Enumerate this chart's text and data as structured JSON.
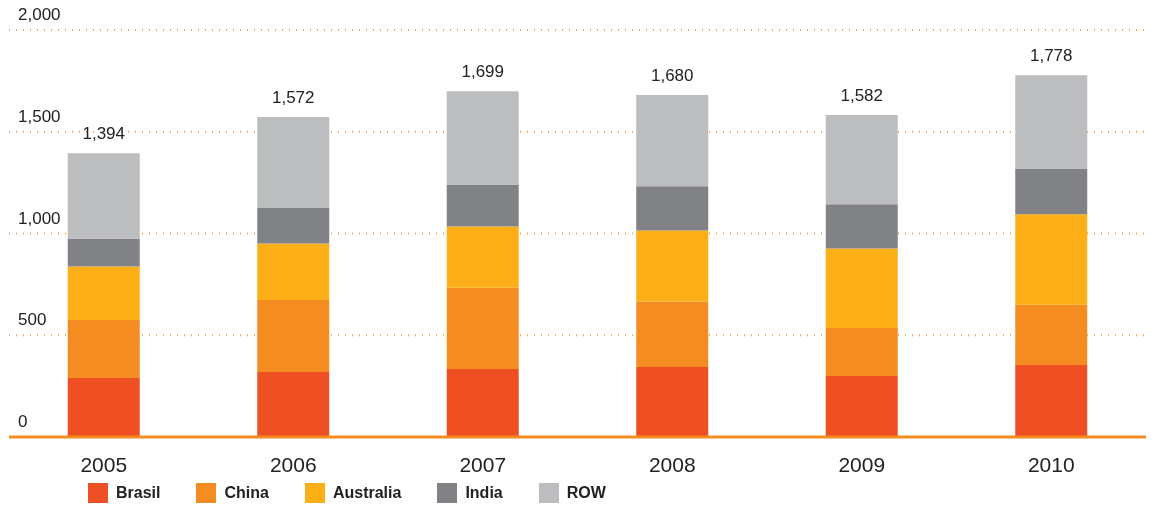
{
  "chart_data": {
    "type": "bar",
    "stacked": true,
    "categories": [
      "2005",
      "2006",
      "2007",
      "2008",
      "2009",
      "2010"
    ],
    "series": [
      {
        "name": "Brasil",
        "color": "#ef5023",
        "values": [
          290,
          319,
          334,
          344,
          300,
          354
        ]
      },
      {
        "name": "China",
        "color": "#f48c21",
        "values": [
          285,
          354,
          400,
          321,
          236,
          296
        ]
      },
      {
        "name": "Australia",
        "color": "#fcaf17",
        "values": [
          263,
          278,
          301,
          350,
          390,
          444
        ]
      },
      {
        "name": "India",
        "color": "#818286",
        "values": [
          136,
          177,
          206,
          217,
          218,
          226
        ]
      },
      {
        "name": "ROW",
        "color": "#bcbdbf",
        "values": [
          420,
          444,
          458,
          448,
          438,
          458
        ]
      }
    ],
    "totals": [
      "1,394",
      "1,572",
      "1,699",
      "1,680",
      "1,582",
      "1,778"
    ],
    "ylim": [
      0,
      2000
    ],
    "yticks": [
      {
        "value": 0,
        "label": "0"
      },
      {
        "value": 500,
        "label": "500"
      },
      {
        "value": 1000,
        "label": "1,000"
      },
      {
        "value": 1500,
        "label": "1,500"
      },
      {
        "value": 2000,
        "label": "2,000"
      }
    ],
    "grid": "y",
    "legend": "bottom left"
  }
}
